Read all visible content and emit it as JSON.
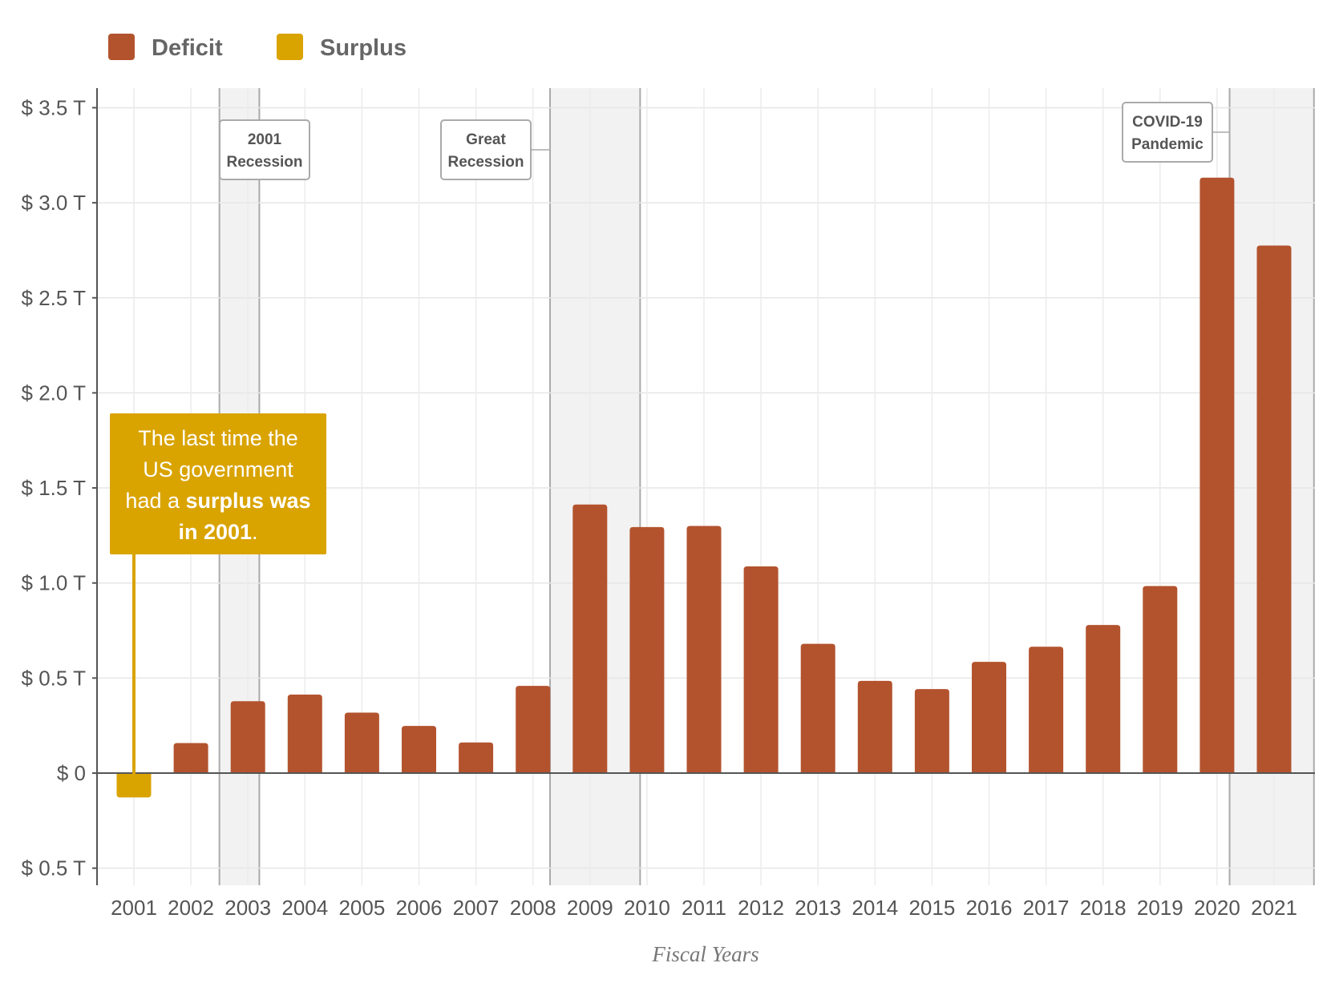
{
  "chart_data": {
    "type": "bar",
    "title": "",
    "xlabel": "Fiscal Years",
    "ylabel": "",
    "categories": [
      "2001",
      "2002",
      "2003",
      "2004",
      "2005",
      "2006",
      "2007",
      "2008",
      "2009",
      "2010",
      "2011",
      "2012",
      "2013",
      "2014",
      "2015",
      "2016",
      "2017",
      "2018",
      "2019",
      "2020",
      "2021"
    ],
    "values": [
      -0.128,
      0.158,
      0.378,
      0.413,
      0.318,
      0.248,
      0.161,
      0.459,
      1.413,
      1.294,
      1.3,
      1.087,
      0.68,
      0.485,
      0.442,
      0.585,
      0.665,
      0.779,
      0.984,
      3.132,
      2.775
    ],
    "ylim": [
      -0.6,
      3.6
    ],
    "yticks": [
      {
        "value": 3.5,
        "label": "$ 3.5 T"
      },
      {
        "value": 3.0,
        "label": "$ 3.0 T"
      },
      {
        "value": 2.5,
        "label": "$ 2.5 T"
      },
      {
        "value": 2.0,
        "label": "$ 2.0 T"
      },
      {
        "value": 1.5,
        "label": "$ 1.5 T"
      },
      {
        "value": 1.0,
        "label": "$ 1.0 T"
      },
      {
        "value": 0.5,
        "label": "$ 0.5 T"
      },
      {
        "value": 0,
        "label": "$ 0"
      },
      {
        "value": -0.5,
        "label": "$ 0.5 T"
      }
    ],
    "grid": true,
    "legend": {
      "placement": "top-left",
      "entries": [
        {
          "name": "Deficit",
          "color": "#b3532e"
        },
        {
          "name": "Surplus",
          "color": "#d9a300"
        }
      ]
    },
    "recessions": [
      {
        "label_lines": [
          "2001",
          "Recession"
        ],
        "start": 1.5,
        "end": 2.2
      },
      {
        "label_lines": [
          "Great",
          "Recession"
        ],
        "start": 7.3,
        "end": 8.88
      },
      {
        "label_lines": [
          "COVID-19",
          "Pandemic"
        ],
        "start": 19.22,
        "end": 20.7
      }
    ],
    "annotation": {
      "category": "2001",
      "color": "#d9a300",
      "lines": [
        [
          {
            "text": "The last time the",
            "bold": false
          }
        ],
        [
          {
            "text": "US government",
            "bold": false
          }
        ],
        [
          {
            "text": "had a ",
            "bold": false
          },
          {
            "text": "surplus was",
            "bold": true
          }
        ],
        [
          {
            "text": "in 2001",
            "bold": true
          },
          {
            "text": ".",
            "bold": false
          }
        ]
      ]
    }
  }
}
